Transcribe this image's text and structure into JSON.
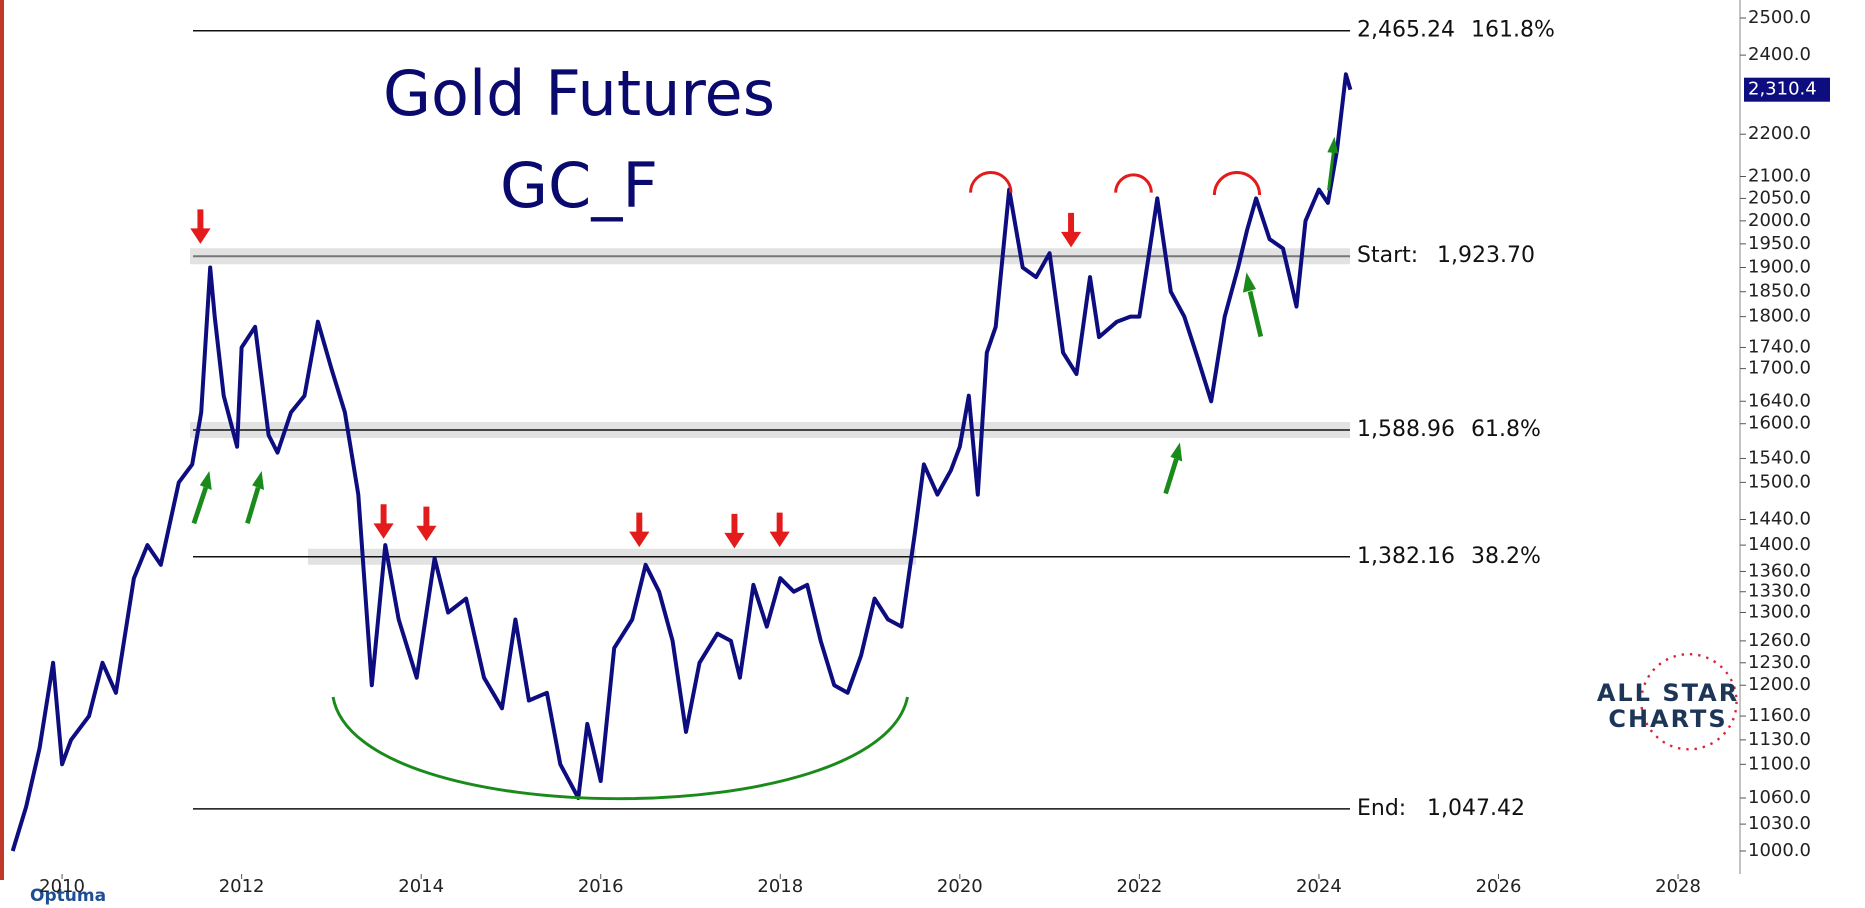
{
  "chart_data": {
    "type": "line",
    "title": "Gold Futures",
    "subtitle": "GC_F",
    "log_scale": true,
    "grid": false,
    "xlim": [
      2009.42,
      2028.69
    ],
    "xticks": [
      2010,
      2012,
      2014,
      2016,
      2018,
      2020,
      2022,
      2024,
      2026,
      2028
    ],
    "ylim": [
      975,
      2550
    ],
    "yticks": [
      {
        "value": 2500,
        "label": "2500.0"
      },
      {
        "value": 2400,
        "label": "2400.0"
      },
      {
        "value": 2200,
        "label": "2200.0"
      },
      {
        "value": 2100,
        "label": "2100.0"
      },
      {
        "value": 2050,
        "label": "2050.0"
      },
      {
        "value": 2000,
        "label": "2000.0"
      },
      {
        "value": 1950,
        "label": "1950.0"
      },
      {
        "value": 1900,
        "label": "1900.0"
      },
      {
        "value": 1850,
        "label": "1850.0"
      },
      {
        "value": 1800,
        "label": "1800.0"
      },
      {
        "value": 1740,
        "label": "1740.0"
      },
      {
        "value": 1700,
        "label": "1700.0"
      },
      {
        "value": 1640,
        "label": "1640.0"
      },
      {
        "value": 1600,
        "label": "1600.0"
      },
      {
        "value": 1540,
        "label": "1540.0"
      },
      {
        "value": 1500,
        "label": "1500.0"
      },
      {
        "value": 1440,
        "label": "1440.0"
      },
      {
        "value": 1400,
        "label": "1400.0"
      },
      {
        "value": 1360,
        "label": "1360.0"
      },
      {
        "value": 1330,
        "label": "1330.0"
      },
      {
        "value": 1300,
        "label": "1300.0"
      },
      {
        "value": 1260,
        "label": "1260.0"
      },
      {
        "value": 1230,
        "label": "1230.0"
      },
      {
        "value": 1200,
        "label": "1200.0"
      },
      {
        "value": 1160,
        "label": "1160.0"
      },
      {
        "value": 1130,
        "label": "1130.0"
      },
      {
        "value": 1100,
        "label": "1100.0"
      },
      {
        "value": 1060,
        "label": "1060.0"
      },
      {
        "value": 1030,
        "label": "1030.0"
      },
      {
        "value": 1000,
        "label": "1000.0"
      }
    ],
    "x": [
      2009.45,
      2009.6,
      2009.75,
      2009.9,
      2010.0,
      2010.1,
      2010.3,
      2010.45,
      2010.6,
      2010.8,
      2010.95,
      2011.1,
      2011.3,
      2011.45,
      2011.55,
      2011.65,
      2011.7,
      2011.8,
      2011.95,
      2012.0,
      2012.15,
      2012.3,
      2012.4,
      2012.55,
      2012.7,
      2012.85,
      2013.0,
      2013.15,
      2013.3,
      2013.45,
      2013.6,
      2013.75,
      2013.95,
      2014.15,
      2014.3,
      2014.5,
      2014.7,
      2014.9,
      2015.05,
      2015.2,
      2015.4,
      2015.55,
      2015.75,
      2015.85,
      2016.0,
      2016.15,
      2016.35,
      2016.5,
      2016.65,
      2016.8,
      2016.95,
      2017.1,
      2017.3,
      2017.45,
      2017.55,
      2017.7,
      2017.85,
      2018.0,
      2018.15,
      2018.3,
      2018.45,
      2018.6,
      2018.75,
      2018.9,
      2019.05,
      2019.2,
      2019.35,
      2019.5,
      2019.6,
      2019.75,
      2019.9,
      2020.0,
      2020.1,
      2020.2,
      2020.3,
      2020.4,
      2020.55,
      2020.7,
      2020.85,
      2021.0,
      2021.15,
      2021.3,
      2021.45,
      2021.55,
      2021.75,
      2021.9,
      2022.0,
      2022.1,
      2022.2,
      2022.35,
      2022.5,
      2022.65,
      2022.8,
      2022.95,
      2023.1,
      2023.2,
      2023.3,
      2023.45,
      2023.6,
      2023.75,
      2023.85,
      2024.0,
      2024.1,
      2024.2,
      2024.3,
      2024.35
    ],
    "series": [
      {
        "color": "#0d0d80",
        "values": [
          1000,
          1050,
          1120,
          1230,
          1100,
          1130,
          1160,
          1230,
          1190,
          1350,
          1400,
          1370,
          1500,
          1530,
          1620,
          1900,
          1800,
          1650,
          1560,
          1740,
          1780,
          1580,
          1550,
          1620,
          1650,
          1790,
          1700,
          1620,
          1480,
          1200,
          1400,
          1290,
          1210,
          1380,
          1300,
          1320,
          1210,
          1170,
          1290,
          1180,
          1190,
          1100,
          1060,
          1150,
          1080,
          1250,
          1290,
          1370,
          1330,
          1260,
          1140,
          1230,
          1270,
          1260,
          1210,
          1340,
          1280,
          1350,
          1330,
          1340,
          1260,
          1200,
          1190,
          1240,
          1320,
          1290,
          1280,
          1420,
          1530,
          1480,
          1520,
          1560,
          1650,
          1480,
          1730,
          1780,
          2070,
          1900,
          1880,
          1930,
          1730,
          1690,
          1880,
          1760,
          1790,
          1800,
          1800,
          1920,
          2050,
          1850,
          1800,
          1720,
          1640,
          1800,
          1900,
          1980,
          2050,
          1960,
          1940,
          1820,
          2000,
          2070,
          2040,
          2160,
          2350,
          2310.4
        ]
      }
    ],
    "last_price": {
      "value": 2310.4,
      "label": "2,310.4"
    },
    "levels": [
      {
        "value": 2465.24,
        "label": "2,465.24",
        "ratio": "161.8%"
      },
      {
        "value": 1923.7,
        "label": "1,923.70",
        "prefix": "Start:"
      },
      {
        "value": 1588.96,
        "label": "1,588.96",
        "ratio": "61.8%"
      },
      {
        "value": 1382.16,
        "label": "1,382.16",
        "ratio": "38.2%"
      },
      {
        "value": 1047.42,
        "label": "1,047.42",
        "prefix": "End:"
      }
    ],
    "logo": [
      "ALL STAR",
      "CHARTS"
    ],
    "brand": "Optuma"
  }
}
